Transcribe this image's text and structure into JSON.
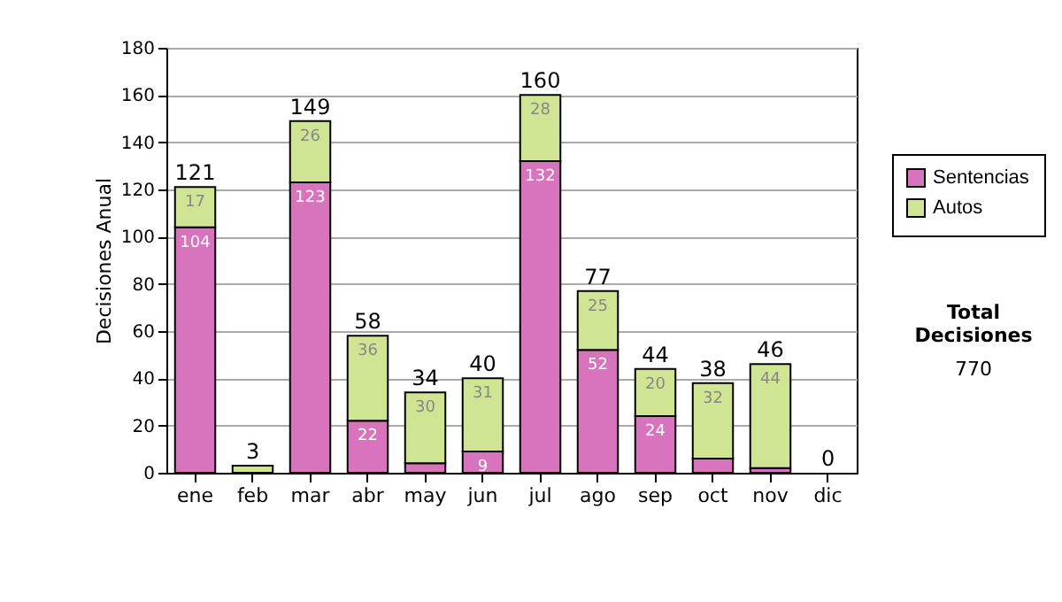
{
  "chart_data": {
    "type": "bar",
    "stacked": true,
    "categories": [
      "ene",
      "feb",
      "mar",
      "abr",
      "may",
      "jun",
      "jul",
      "ago",
      "sep",
      "oct",
      "nov",
      "dic"
    ],
    "ylabel": "Decisiones Anual",
    "series": [
      {
        "name": "Sentencias",
        "color": "#d873bd",
        "values": [
          104,
          0,
          123,
          22,
          4,
          9,
          132,
          52,
          24,
          6,
          2,
          0
        ],
        "value_labels": [
          "104",
          null,
          "123",
          "22",
          null,
          "9",
          "132",
          "52",
          "24",
          null,
          null,
          null
        ]
      },
      {
        "name": "Autos",
        "color": "#cfe594",
        "values": [
          17,
          3,
          26,
          36,
          30,
          31,
          28,
          25,
          20,
          32,
          44,
          0
        ],
        "value_labels": [
          "17",
          null,
          "26",
          "36",
          "30",
          "31",
          "28",
          "25",
          "20",
          "32",
          "44",
          null
        ]
      }
    ],
    "totals": [
      "121",
      "3",
      "149",
      "58",
      "34",
      "40",
      "160",
      "77",
      "44",
      "38",
      "46",
      "0"
    ],
    "ylim": [
      0,
      180
    ],
    "yticks": [
      0,
      20,
      40,
      60,
      80,
      100,
      120,
      140,
      160,
      180
    ],
    "grid": "y",
    "legend": "right",
    "annotations": [
      "Total Decisiones",
      "770"
    ]
  }
}
